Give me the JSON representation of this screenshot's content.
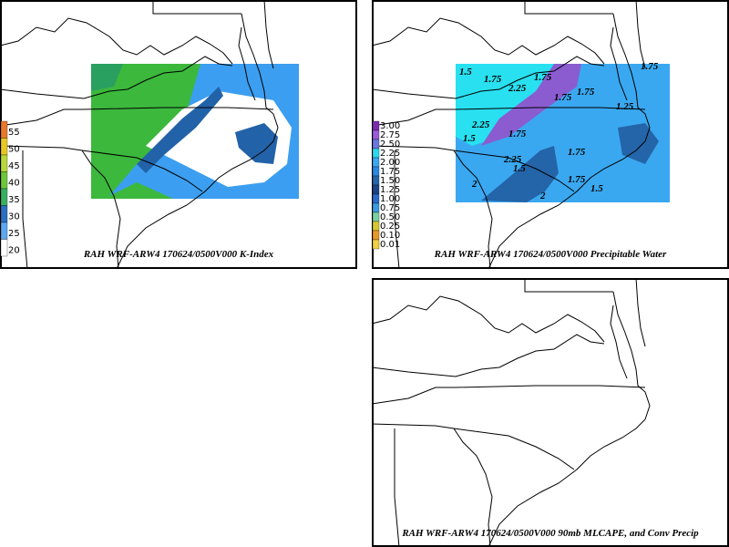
{
  "panels": [
    {
      "caption": "RAH WRF-ARW4 170624/0500V000 K-Index",
      "legend": [
        "55",
        "50",
        "45",
        "40",
        "35",
        "30",
        "25",
        "20"
      ]
    },
    {
      "caption": "RAH WRF-ARW4 170624/0500V000 Precipitable Water",
      "legend": [
        "3.00",
        "2.75",
        "2.50",
        "2.25",
        "2.00",
        "1.75",
        "1.50",
        "1.25",
        "1.00",
        "0.75",
        "0.50",
        "0.25",
        "0.10",
        "0.01"
      ],
      "contour_labels": [
        "1.5",
        "1.75",
        "2.25",
        "1.75",
        "1.75",
        "2.25",
        "1.75",
        "1.75",
        "1.5",
        "1.75",
        "2",
        "1.75",
        "1.5",
        "2",
        "1.75",
        "1.25",
        "1.5",
        "2.25"
      ]
    },
    {
      "caption": "RAH WRF-ARW4 170624/0500V000 90mb MLCAPE, and Conv Precip"
    }
  ]
}
